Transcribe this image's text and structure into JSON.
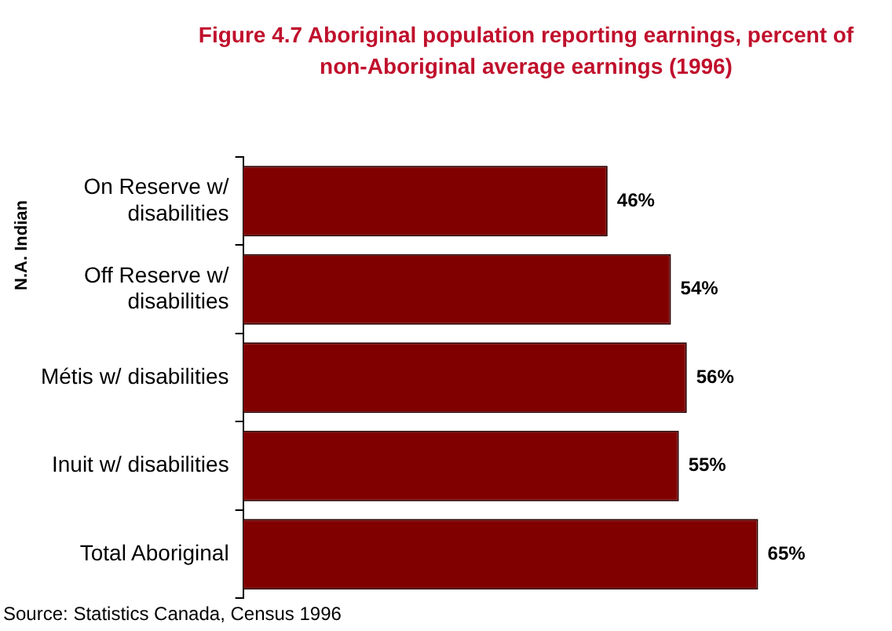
{
  "chart_data": {
    "type": "bar",
    "orientation": "horizontal",
    "title": "Figure 4.7 Aboriginal population reporting earnings, percent of non-Aboriginal average earnings (1996)",
    "ylabel": "N.A. Indian",
    "categories": [
      "On Reserve w/ disabilities",
      "Off Reserve w/ disabilities",
      "Métis w/ disabilities",
      "Inuit w/ disabilities",
      "Total Aboriginal"
    ],
    "values": [
      46,
      54,
      56,
      55,
      65
    ],
    "value_labels": [
      "46%",
      "54%",
      "56%",
      "55%",
      "65%"
    ],
    "color": "#800000",
    "tick_labels": "y",
    "legend": false,
    "annotations": [
      "Source: Statistics Canada, Census 1996"
    ]
  }
}
